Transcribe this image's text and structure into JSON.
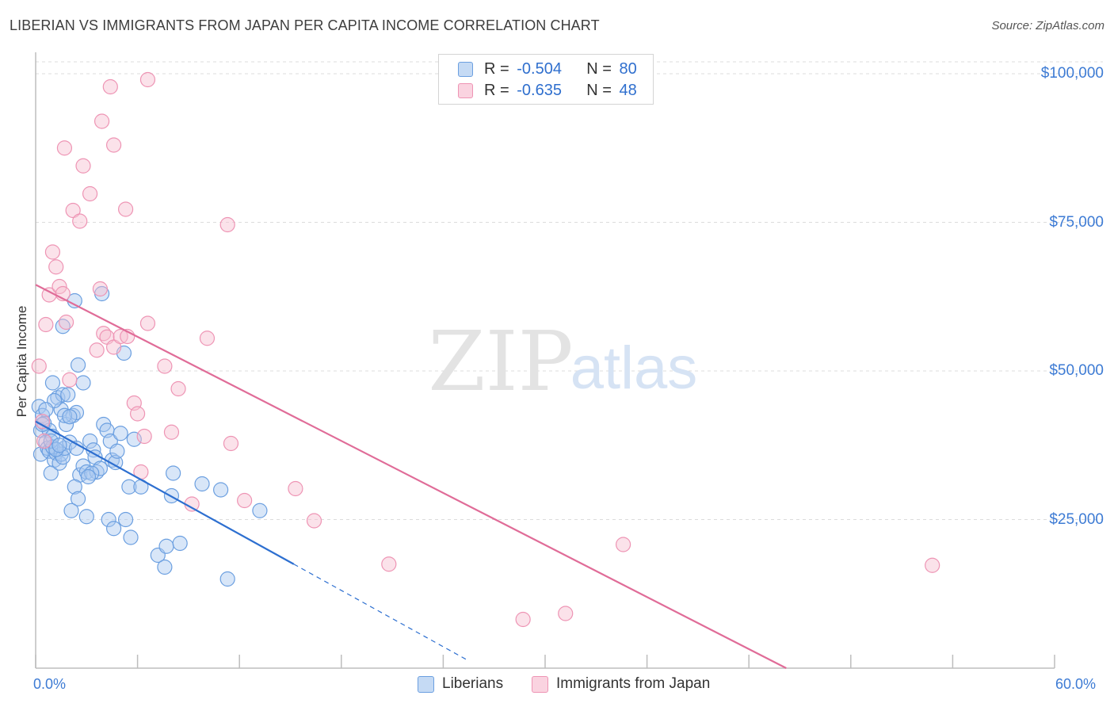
{
  "title": "LIBERIAN VS IMMIGRANTS FROM JAPAN PER CAPITA INCOME CORRELATION CHART",
  "source": "Source: ZipAtlas.com",
  "watermark": {
    "zip": "ZIP",
    "atlas": "atlas"
  },
  "legend": {
    "series1": {
      "r_label": "R = ",
      "r_value": "-0.504",
      "n_label": "N = ",
      "n_value": "80"
    },
    "series2": {
      "r_label": "R = ",
      "r_value": "-0.635",
      "n_label": "N = ",
      "n_value": "48"
    }
  },
  "colors": {
    "blue_fill": "#a9c8ef",
    "blue_stroke": "#6b9fe0",
    "blue_line": "#2d6fd0",
    "pink_fill": "#f7bfd1",
    "pink_stroke": "#ee94b4",
    "pink_line": "#e06c98",
    "grid": "#dcdcdc",
    "tick_text": "#3d7bd4"
  },
  "chart_data": {
    "type": "scatter",
    "title": "LIBERIAN VS IMMIGRANTS FROM JAPAN PER CAPITA INCOME CORRELATION CHART",
    "xlabel": "",
    "ylabel": "Per Capita Income",
    "xlim": [
      0,
      60
    ],
    "ylim": [
      0,
      102000
    ],
    "x_tick_labels": {
      "min": "0.0%",
      "max": "60.0%"
    },
    "y_ticks": [
      {
        "value": 25000,
        "label": "$25,000"
      },
      {
        "value": 50000,
        "label": "$50,000"
      },
      {
        "value": 75000,
        "label": "$75,000"
      },
      {
        "value": 100000,
        "label": "$100,000"
      }
    ],
    "series": [
      {
        "name": "Liberians",
        "color": "#6b9fe0",
        "trend": {
          "x0": 0,
          "y0": 41500,
          "x1": 15.2,
          "y1": 17500,
          "dash_to_x": 25.5
        },
        "points": [
          [
            0.2,
            44000
          ],
          [
            0.4,
            42500
          ],
          [
            0.3,
            40000
          ],
          [
            0.5,
            41200
          ],
          [
            0.6,
            38000
          ],
          [
            0.3,
            36000
          ],
          [
            0.7,
            37000
          ],
          [
            0.8,
            40000
          ],
          [
            1.0,
            39000
          ],
          [
            0.8,
            36500
          ],
          [
            1.1,
            35000
          ],
          [
            0.9,
            32800
          ],
          [
            1.2,
            36200
          ],
          [
            1.0,
            37200
          ],
          [
            1.4,
            34500
          ],
          [
            1.5,
            36000
          ],
          [
            1.6,
            35500
          ],
          [
            1.7,
            37000
          ],
          [
            1.3,
            45500
          ],
          [
            1.5,
            43500
          ],
          [
            1.8,
            41000
          ],
          [
            2.0,
            38000
          ],
          [
            2.2,
            42500
          ],
          [
            2.4,
            43000
          ],
          [
            2.6,
            32500
          ],
          [
            2.3,
            30500
          ],
          [
            2.5,
            28500
          ],
          [
            2.1,
            26500
          ],
          [
            2.8,
            34000
          ],
          [
            3.0,
            33000
          ],
          [
            3.2,
            38200
          ],
          [
            3.4,
            36700
          ],
          [
            3.5,
            35500
          ],
          [
            3.6,
            33000
          ],
          [
            3.8,
            33600
          ],
          [
            4.0,
            41000
          ],
          [
            4.2,
            40000
          ],
          [
            4.4,
            38200
          ],
          [
            4.5,
            35000
          ],
          [
            4.7,
            34600
          ],
          [
            4.8,
            36500
          ],
          [
            5.0,
            39500
          ],
          [
            3.0,
            25500
          ],
          [
            4.3,
            25000
          ],
          [
            4.6,
            23500
          ],
          [
            5.3,
            25000
          ],
          [
            5.6,
            22000
          ],
          [
            5.8,
            38500
          ],
          [
            5.5,
            30500
          ],
          [
            6.2,
            30500
          ],
          [
            7.2,
            19000
          ],
          [
            7.6,
            17000
          ],
          [
            7.7,
            20500
          ],
          [
            8.0,
            29000
          ],
          [
            8.1,
            32800
          ],
          [
            8.5,
            21000
          ],
          [
            9.8,
            31000
          ],
          [
            10.9,
            30000
          ],
          [
            11.3,
            15000
          ],
          [
            13.2,
            26500
          ],
          [
            1.0,
            48000
          ],
          [
            1.6,
            46000
          ],
          [
            2.5,
            51000
          ],
          [
            2.8,
            48000
          ],
          [
            1.6,
            57500
          ],
          [
            2.3,
            61800
          ],
          [
            3.9,
            63000
          ],
          [
            5.2,
            53000
          ],
          [
            1.1,
            45000
          ],
          [
            1.7,
            42500
          ],
          [
            2.4,
            37000
          ],
          [
            3.3,
            32800
          ],
          [
            1.9,
            46000
          ],
          [
            0.6,
            43500
          ],
          [
            0.9,
            38200
          ],
          [
            1.2,
            36800
          ],
          [
            2.0,
            42300
          ],
          [
            3.1,
            32200
          ],
          [
            0.4,
            41000
          ],
          [
            1.4,
            37500
          ]
        ]
      },
      {
        "name": "Immigrants from Japan",
        "color": "#ee94b4",
        "trend": {
          "x0": 0,
          "y0": 64500,
          "x1": 44.2,
          "y1": 0
        },
        "points": [
          [
            0.2,
            50800
          ],
          [
            0.4,
            41500
          ],
          [
            0.5,
            38200
          ],
          [
            0.6,
            57800
          ],
          [
            0.8,
            62800
          ],
          [
            1.0,
            70000
          ],
          [
            1.2,
            67500
          ],
          [
            1.4,
            64200
          ],
          [
            1.6,
            63000
          ],
          [
            1.8,
            58200
          ],
          [
            2.0,
            48500
          ],
          [
            2.2,
            77000
          ],
          [
            2.6,
            75200
          ],
          [
            2.8,
            84500
          ],
          [
            3.2,
            79800
          ],
          [
            1.7,
            87500
          ],
          [
            3.9,
            92000
          ],
          [
            4.4,
            97800
          ],
          [
            4.6,
            88000
          ],
          [
            6.6,
            99000
          ],
          [
            5.3,
            77200
          ],
          [
            3.6,
            53500
          ],
          [
            3.8,
            63800
          ],
          [
            4.0,
            56300
          ],
          [
            4.2,
            55700
          ],
          [
            4.6,
            54000
          ],
          [
            5.0,
            55800
          ],
          [
            5.4,
            55800
          ],
          [
            5.8,
            44600
          ],
          [
            6.0,
            42800
          ],
          [
            6.2,
            33000
          ],
          [
            6.4,
            39000
          ],
          [
            6.6,
            58000
          ],
          [
            7.6,
            50800
          ],
          [
            8.4,
            47000
          ],
          [
            8.0,
            39700
          ],
          [
            9.2,
            27600
          ],
          [
            10.1,
            55500
          ],
          [
            11.3,
            74600
          ],
          [
            11.5,
            37800
          ],
          [
            12.3,
            28200
          ],
          [
            15.3,
            30200
          ],
          [
            16.4,
            24800
          ],
          [
            20.8,
            17500
          ],
          [
            28.7,
            8200
          ],
          [
            31.2,
            9200
          ],
          [
            34.6,
            20800
          ],
          [
            52.8,
            17300
          ]
        ]
      }
    ]
  },
  "bottom_legend": {
    "series1": "Liberians",
    "series2": "Immigrants from Japan"
  }
}
